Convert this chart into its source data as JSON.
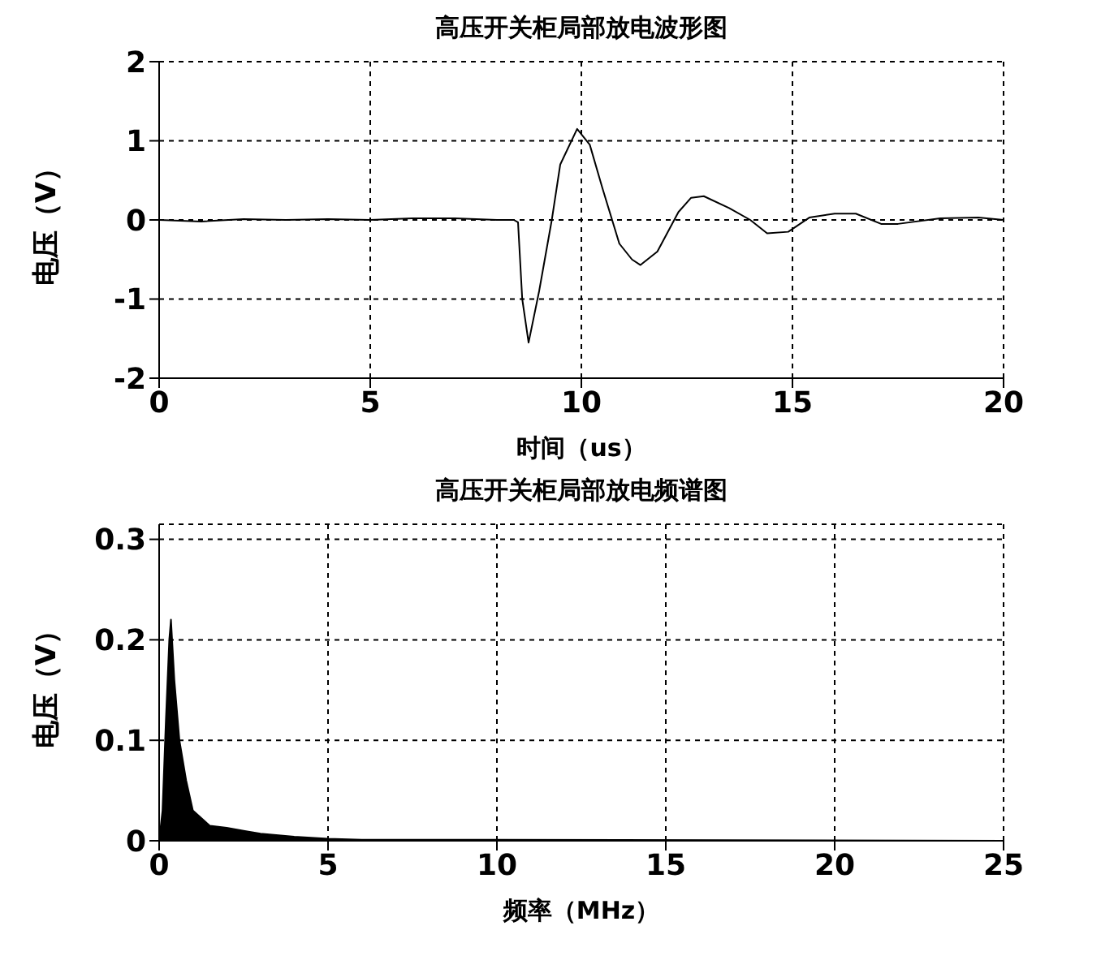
{
  "chart_data": [
    {
      "type": "line",
      "title": "高压开关柜局部放电波形图",
      "xlabel": "时间（us）",
      "ylabel": "电压（V）",
      "color": "#000000",
      "x": [
        0,
        1,
        2,
        3,
        4,
        5,
        6,
        7,
        8,
        8.4,
        8.5,
        8.6,
        8.75,
        9.0,
        9.3,
        9.5,
        9.9,
        10.2,
        10.5,
        10.9,
        11.2,
        11.4,
        11.8,
        12.3,
        12.6,
        12.9,
        13.5,
        14,
        14.4,
        14.9,
        15.4,
        16,
        16.5,
        17.1,
        17.5,
        18.5,
        19.4,
        20
      ],
      "values": [
        0,
        -0.02,
        0.01,
        0,
        0.01,
        0,
        0.02,
        0.02,
        0,
        0,
        -0.03,
        -1.0,
        -1.55,
        -0.9,
        0,
        0.7,
        1.15,
        0.95,
        0.4,
        -0.3,
        -0.5,
        -0.57,
        -0.4,
        0.1,
        0.28,
        0.3,
        0.15,
        0,
        -0.17,
        -0.15,
        0.03,
        0.08,
        0.08,
        -0.05,
        -0.05,
        0.02,
        0.03,
        0
      ],
      "xlim": [
        0,
        20
      ],
      "xticks": [
        0,
        5,
        10,
        15,
        20
      ],
      "ylim": [
        -2,
        2
      ],
      "yticks": [
        -2,
        -1,
        0,
        1,
        2
      ],
      "grid": true
    },
    {
      "type": "area",
      "title": "高压开关柜局部放电频谱图",
      "xlabel": "频率（MHz）",
      "ylabel": "电压（V）",
      "color": "#000000",
      "x": [
        0,
        0.1,
        0.2,
        0.3,
        0.35,
        0.45,
        0.6,
        0.8,
        1.0,
        1.5,
        2,
        2.5,
        3,
        4,
        5,
        6,
        10,
        25
      ],
      "values": [
        0,
        0.03,
        0.12,
        0.2,
        0.22,
        0.16,
        0.1,
        0.06,
        0.03,
        0.015,
        0.013,
        0.01,
        0.007,
        0.004,
        0.002,
        0.001,
        0.001,
        0
      ],
      "xlim": [
        0,
        25
      ],
      "xticks": [
        0,
        5,
        10,
        15,
        20,
        25
      ],
      "ylim": [
        0,
        0.315
      ],
      "yticks": [
        0,
        0.1,
        0.2,
        0.3
      ],
      "grid": true
    }
  ]
}
